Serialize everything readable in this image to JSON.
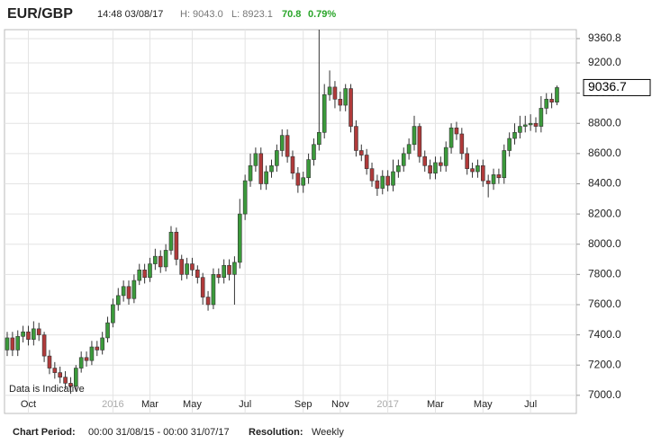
{
  "chart_data": {
    "type": "candlestick",
    "title": "EUR/GBP",
    "time": "14:48 03/08/17",
    "high_text": "H: 9043.0",
    "low_text": "L: 8923.1",
    "change": "70.8",
    "change_pct": "0.79%",
    "note": "Data is Indicative",
    "last_price": 9036.7,
    "footer": {
      "period_label": "Chart Period:",
      "period": "00:00 31/08/15 - 00:00 31/07/17",
      "resolution_label": "Resolution:",
      "resolution": "Weekly"
    },
    "up_color": "#3b9a3b",
    "down_color": "#b03a3a",
    "grid": true,
    "ylim": [
      6880,
      9420
    ],
    "yticks": [
      {
        "value": 7000,
        "label": "7000.0"
      },
      {
        "value": 7200,
        "label": "7200.0"
      },
      {
        "value": 7400,
        "label": "7400.0"
      },
      {
        "value": 7600,
        "label": "7600.0"
      },
      {
        "value": 7800,
        "label": "7800.0"
      },
      {
        "value": 8000,
        "label": "8000.0"
      },
      {
        "value": 8200,
        "label": "8200.0"
      },
      {
        "value": 8400,
        "label": "8400.0"
      },
      {
        "value": 8600,
        "label": "8600.0"
      },
      {
        "value": 8800,
        "label": "8800.0"
      },
      {
        "value": 9000,
        "label": "9000.0"
      },
      {
        "value": 9200,
        "label": "9200.0"
      },
      9360.8
    ],
    "categories": [
      null,
      null,
      null,
      null,
      "Oct",
      null,
      null,
      null,
      null,
      null,
      null,
      null,
      null,
      null,
      null,
      null,
      null,
      null,
      null,
      null,
      "2016",
      null,
      null,
      null,
      null,
      null,
      null,
      "Mar",
      null,
      null,
      null,
      null,
      null,
      null,
      null,
      "May",
      null,
      null,
      null,
      null,
      null,
      null,
      null,
      null,
      null,
      "Jul",
      null,
      null,
      null,
      null,
      null,
      null,
      null,
      null,
      null,
      null,
      "Sep",
      null,
      null,
      null,
      null,
      null,
      null,
      "Nov",
      null,
      null,
      null,
      null,
      null,
      null,
      null,
      null,
      "2017",
      null,
      null,
      null,
      null,
      null,
      null,
      null,
      null,
      "Mar",
      null,
      null,
      null,
      null,
      null,
      null,
      null,
      null,
      "May",
      null,
      null,
      null,
      null,
      null,
      null,
      null,
      null,
      "Jul",
      null,
      null,
      null,
      null,
      null
    ],
    "open": [
      7300,
      7380,
      7300,
      7390,
      7420,
      7370,
      7440,
      7400,
      7260,
      7180,
      7150,
      7120,
      7080,
      7060,
      7180,
      7250,
      7230,
      7320,
      7300,
      7380,
      7480,
      7600,
      7660,
      7720,
      7640,
      7760,
      7830,
      7780,
      7870,
      7920,
      7850,
      7960,
      8080,
      7900,
      7800,
      7870,
      7830,
      7780,
      7650,
      7600,
      7800,
      7780,
      7860,
      7800,
      7880,
      8200,
      8420,
      8520,
      8600,
      8400,
      8480,
      8520,
      8620,
      8720,
      8580,
      8470,
      8390,
      8440,
      8560,
      8660,
      8740,
      8990,
      9040,
      8960,
      8920,
      9030,
      8780,
      8620,
      8590,
      8500,
      8420,
      8370,
      8450,
      8390,
      8480,
      8520,
      8600,
      8660,
      8780,
      8580,
      8520,
      8470,
      8540,
      8520,
      8640,
      8770,
      8730,
      8600,
      8500,
      8480,
      8520,
      8420,
      8400,
      8460,
      8440,
      8620,
      8700,
      8740,
      8780,
      8790,
      8800,
      8780,
      8900,
      8960,
      8940
    ],
    "high": [
      7420,
      7420,
      7430,
      7460,
      7460,
      7490,
      7480,
      7420,
      7300,
      7220,
      7190,
      7160,
      7120,
      7200,
      7290,
      7290,
      7360,
      7360,
      7420,
      7520,
      7640,
      7710,
      7760,
      7760,
      7800,
      7870,
      7870,
      7910,
      7970,
      7960,
      8000,
      8120,
      8110,
      7930,
      7910,
      7910,
      7860,
      7810,
      7690,
      7840,
      7840,
      7900,
      7900,
      7920,
      8300,
      8460,
      8600,
      8640,
      8640,
      8520,
      8560,
      8660,
      8760,
      8760,
      8620,
      8510,
      8480,
      8600,
      8700,
      9420,
      9060,
      9150,
      9080,
      9010,
      9060,
      9060,
      8820,
      8660,
      8630,
      8540,
      8460,
      8490,
      8490,
      8560,
      8560,
      8640,
      8700,
      8850,
      8800,
      8620,
      8560,
      8580,
      8580,
      8680,
      8800,
      8810,
      8770,
      8640,
      8540,
      8560,
      8560,
      8460,
      8500,
      8500,
      8660,
      8740,
      8800,
      8850,
      8850,
      8860,
      8840,
      8980,
      9000,
      9000,
      9050
    ],
    "low": [
      7260,
      7260,
      7260,
      7350,
      7330,
      7330,
      7360,
      7220,
      7140,
      7110,
      7080,
      7040,
      7010,
      7030,
      7150,
      7190,
      7200,
      7260,
      7270,
      7350,
      7450,
      7560,
      7620,
      7600,
      7610,
      7730,
      7740,
      7750,
      7830,
      7810,
      7820,
      7930,
      7860,
      7760,
      7770,
      7790,
      7740,
      7600,
      7560,
      7570,
      7740,
      7740,
      7760,
      7600,
      7840,
      8160,
      8380,
      8480,
      8360,
      8360,
      8440,
      8480,
      8580,
      8540,
      8430,
      8340,
      8340,
      8400,
      8520,
      8620,
      8700,
      8950,
      8900,
      8880,
      8880,
      8740,
      8580,
      8550,
      8460,
      8380,
      8320,
      8330,
      8350,
      8350,
      8440,
      8480,
      8560,
      8620,
      8540,
      8480,
      8430,
      8430,
      8480,
      8480,
      8600,
      8690,
      8560,
      8460,
      8440,
      8440,
      8380,
      8310,
      8360,
      8400,
      8400,
      8580,
      8660,
      8700,
      8740,
      8750,
      8740,
      8740,
      8860,
      8900,
      8920
    ],
    "close": [
      7380,
      7300,
      7390,
      7420,
      7370,
      7440,
      7400,
      7260,
      7180,
      7150,
      7120,
      7080,
      7060,
      7180,
      7250,
      7230,
      7320,
      7300,
      7380,
      7480,
      7600,
      7660,
      7720,
      7640,
      7760,
      7830,
      7780,
      7870,
      7920,
      7850,
      7960,
      8080,
      7900,
      7800,
      7870,
      7830,
      7780,
      7650,
      7600,
      7800,
      7780,
      7860,
      7800,
      7880,
      8200,
      8420,
      8520,
      8600,
      8400,
      8480,
      8520,
      8620,
      8720,
      8580,
      8470,
      8390,
      8440,
      8560,
      8660,
      8740,
      8990,
      9040,
      8960,
      8920,
      9030,
      8780,
      8620,
      8590,
      8500,
      8420,
      8370,
      8450,
      8390,
      8480,
      8520,
      8600,
      8660,
      8780,
      8580,
      8520,
      8470,
      8540,
      8520,
      8640,
      8770,
      8730,
      8600,
      8500,
      8480,
      8520,
      8420,
      8400,
      8460,
      8440,
      8620,
      8700,
      8740,
      8780,
      8790,
      8800,
      8780,
      8900,
      8960,
      8940,
      9036.7
    ]
  }
}
